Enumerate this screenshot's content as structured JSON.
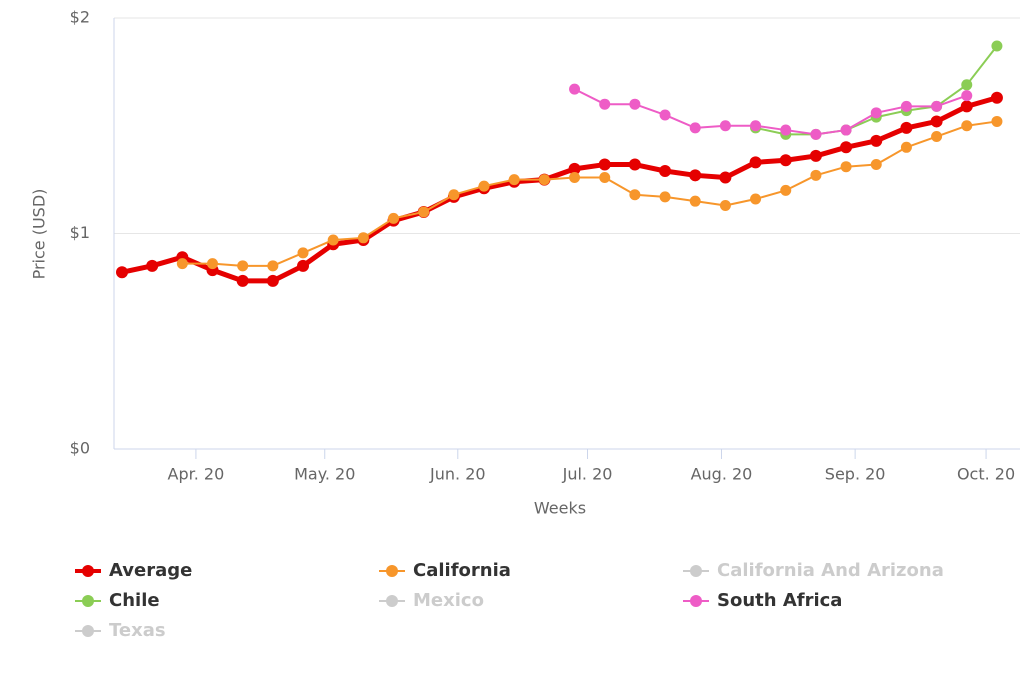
{
  "chart_data": {
    "type": "line",
    "x_label": "Weeks",
    "y_label": "Price (USD)",
    "categories": [
      null,
      null,
      null,
      null,
      null,
      null,
      null,
      null,
      null,
      null,
      null,
      null,
      null,
      null,
      null,
      null,
      null,
      null,
      null,
      null,
      null,
      null,
      null,
      null,
      null,
      null,
      null,
      null,
      null,
      null
    ],
    "xticks": [
      {
        "value": 2.45,
        "label": "Apr. 20"
      },
      {
        "value": 6.72,
        "label": "May. 20"
      },
      {
        "value": 11.13,
        "label": "Jun. 20"
      },
      {
        "value": 15.43,
        "label": "Jul. 20"
      },
      {
        "value": 19.87,
        "label": "Aug. 20"
      },
      {
        "value": 24.3,
        "label": "Sep. 20"
      },
      {
        "value": 28.64,
        "label": "Oct. 20"
      }
    ],
    "ylim": [
      0,
      2
    ],
    "yticks": [
      {
        "value": 0,
        "label": "$0"
      },
      {
        "value": 1,
        "label": "$1"
      },
      {
        "value": 2,
        "label": "$2"
      }
    ],
    "grid": true,
    "legend": "bottom",
    "series": [
      {
        "name": "Average",
        "color": "#e50000",
        "line_width": 5,
        "visible": true,
        "values": [
          0.82,
          0.85,
          0.89,
          0.83,
          0.78,
          0.78,
          0.85,
          0.95,
          0.97,
          1.06,
          1.1,
          1.17,
          1.21,
          1.24,
          1.25,
          1.3,
          1.32,
          1.32,
          1.29,
          1.27,
          1.26,
          1.33,
          1.34,
          1.36,
          1.4,
          1.43,
          1.49,
          1.52,
          1.59,
          1.63
        ]
      },
      {
        "name": "California",
        "color": "#f7962b",
        "line_width": 2,
        "visible": true,
        "values": [
          null,
          null,
          0.86,
          0.86,
          0.85,
          0.85,
          0.91,
          0.97,
          0.98,
          1.07,
          1.1,
          1.18,
          1.22,
          1.25,
          1.25,
          1.26,
          1.26,
          1.18,
          1.17,
          1.15,
          1.13,
          1.16,
          1.2,
          1.27,
          1.31,
          1.32,
          1.4,
          1.45,
          1.5,
          1.52
        ]
      },
      {
        "name": "California And Arizona",
        "color": "#cccccc",
        "line_width": 2,
        "visible": false
      },
      {
        "name": "Chile",
        "color": "#8bcd55",
        "line_width": 2,
        "visible": true,
        "values": [
          null,
          null,
          null,
          null,
          null,
          null,
          null,
          null,
          null,
          null,
          null,
          null,
          null,
          null,
          null,
          null,
          null,
          null,
          null,
          null,
          null,
          1.49,
          1.46,
          1.46,
          1.48,
          1.54,
          1.57,
          1.59,
          1.69,
          1.87
        ]
      },
      {
        "name": "Mexico",
        "color": "#cccccc",
        "line_width": 2,
        "visible": false
      },
      {
        "name": "South Africa",
        "color": "#ee5cc6",
        "line_width": 2,
        "visible": true,
        "values": [
          null,
          null,
          null,
          null,
          null,
          null,
          null,
          null,
          null,
          null,
          null,
          null,
          null,
          null,
          null,
          1.67,
          1.6,
          1.6,
          1.55,
          1.49,
          1.5,
          1.5,
          1.48,
          1.46,
          1.48,
          1.56,
          1.59,
          1.59,
          1.64,
          null
        ]
      },
      {
        "name": "Texas",
        "color": "#cccccc",
        "line_width": 2,
        "visible": false
      }
    ]
  }
}
